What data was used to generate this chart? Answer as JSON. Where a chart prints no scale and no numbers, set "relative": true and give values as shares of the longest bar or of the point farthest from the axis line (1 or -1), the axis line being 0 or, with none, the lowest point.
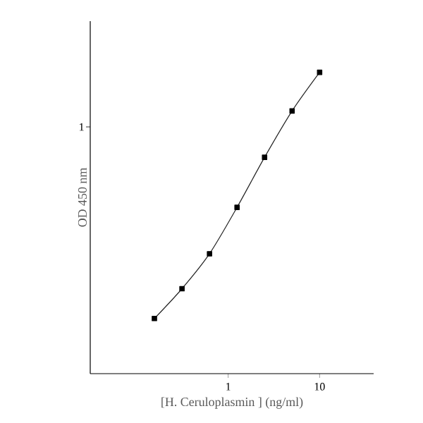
{
  "chart_data": {
    "type": "line",
    "xlabel": "[H. Ceruloplasmin ] (ng/ml)",
    "ylabel": "OD 450 nm",
    "log": "x",
    "relative": true,
    "x": [
      0.156,
      0.3125,
      0.625,
      1.25,
      2.5,
      5,
      10
    ],
    "xlim": [
      0.031,
      39
    ],
    "xticks": [
      1,
      10
    ],
    "annotations": [
      "1"
    ],
    "series": [
      {
        "color": "#222222",
        "values": [
          0.183,
          0.282,
          0.398,
          0.552,
          0.718,
          0.872,
          1.0
        ]
      }
    ],
    "marker": "square",
    "line_style": "solid",
    "grid": false
  }
}
